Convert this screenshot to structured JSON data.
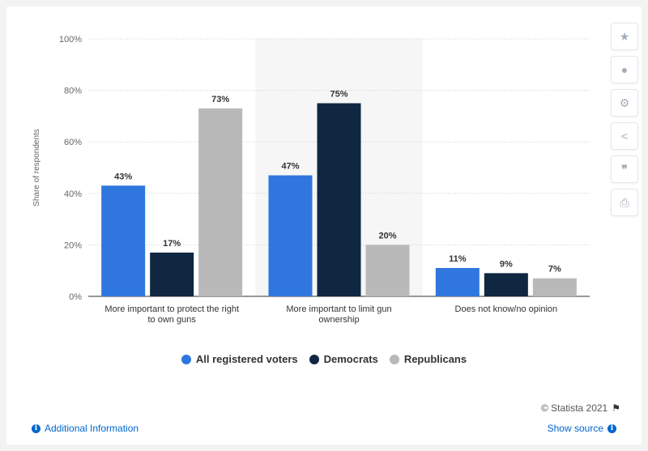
{
  "chart_data": {
    "type": "bar",
    "categories": [
      [
        "More important to protect the right",
        "to own guns"
      ],
      [
        "More important to limit gun",
        "ownership"
      ],
      [
        "Does not know/no opinion"
      ]
    ],
    "series": [
      {
        "name": "All registered voters",
        "color": "#2f77de",
        "values": [
          43,
          47,
          11
        ]
      },
      {
        "name": "Democrats",
        "color": "#0f2741",
        "values": [
          17,
          75,
          9
        ]
      },
      {
        "name": "Republicans",
        "color": "#b9b9b9",
        "values": [
          73,
          20,
          7
        ]
      }
    ],
    "ylabel": "Share of respondents",
    "ylim": [
      0,
      100
    ],
    "yticks": [
      0,
      20,
      40,
      60,
      80,
      100
    ],
    "tick_suffix": "%",
    "value_suffix": "%",
    "grid": true,
    "highlighted_category": 1,
    "legend_position": "bottom"
  },
  "sidebar": {
    "items": [
      {
        "name": "star-icon",
        "glyph": "★"
      },
      {
        "name": "bell-icon",
        "glyph": "🔔"
      },
      {
        "name": "gear-icon",
        "glyph": "⚙"
      },
      {
        "name": "share-icon",
        "glyph": "⋖"
      },
      {
        "name": "quote-icon",
        "glyph": "❞"
      },
      {
        "name": "print-icon",
        "glyph": "⎙"
      }
    ]
  },
  "footer": {
    "copyright": "© Statista 2021",
    "additional_info": "Additional Information",
    "show_source": "Show source"
  }
}
